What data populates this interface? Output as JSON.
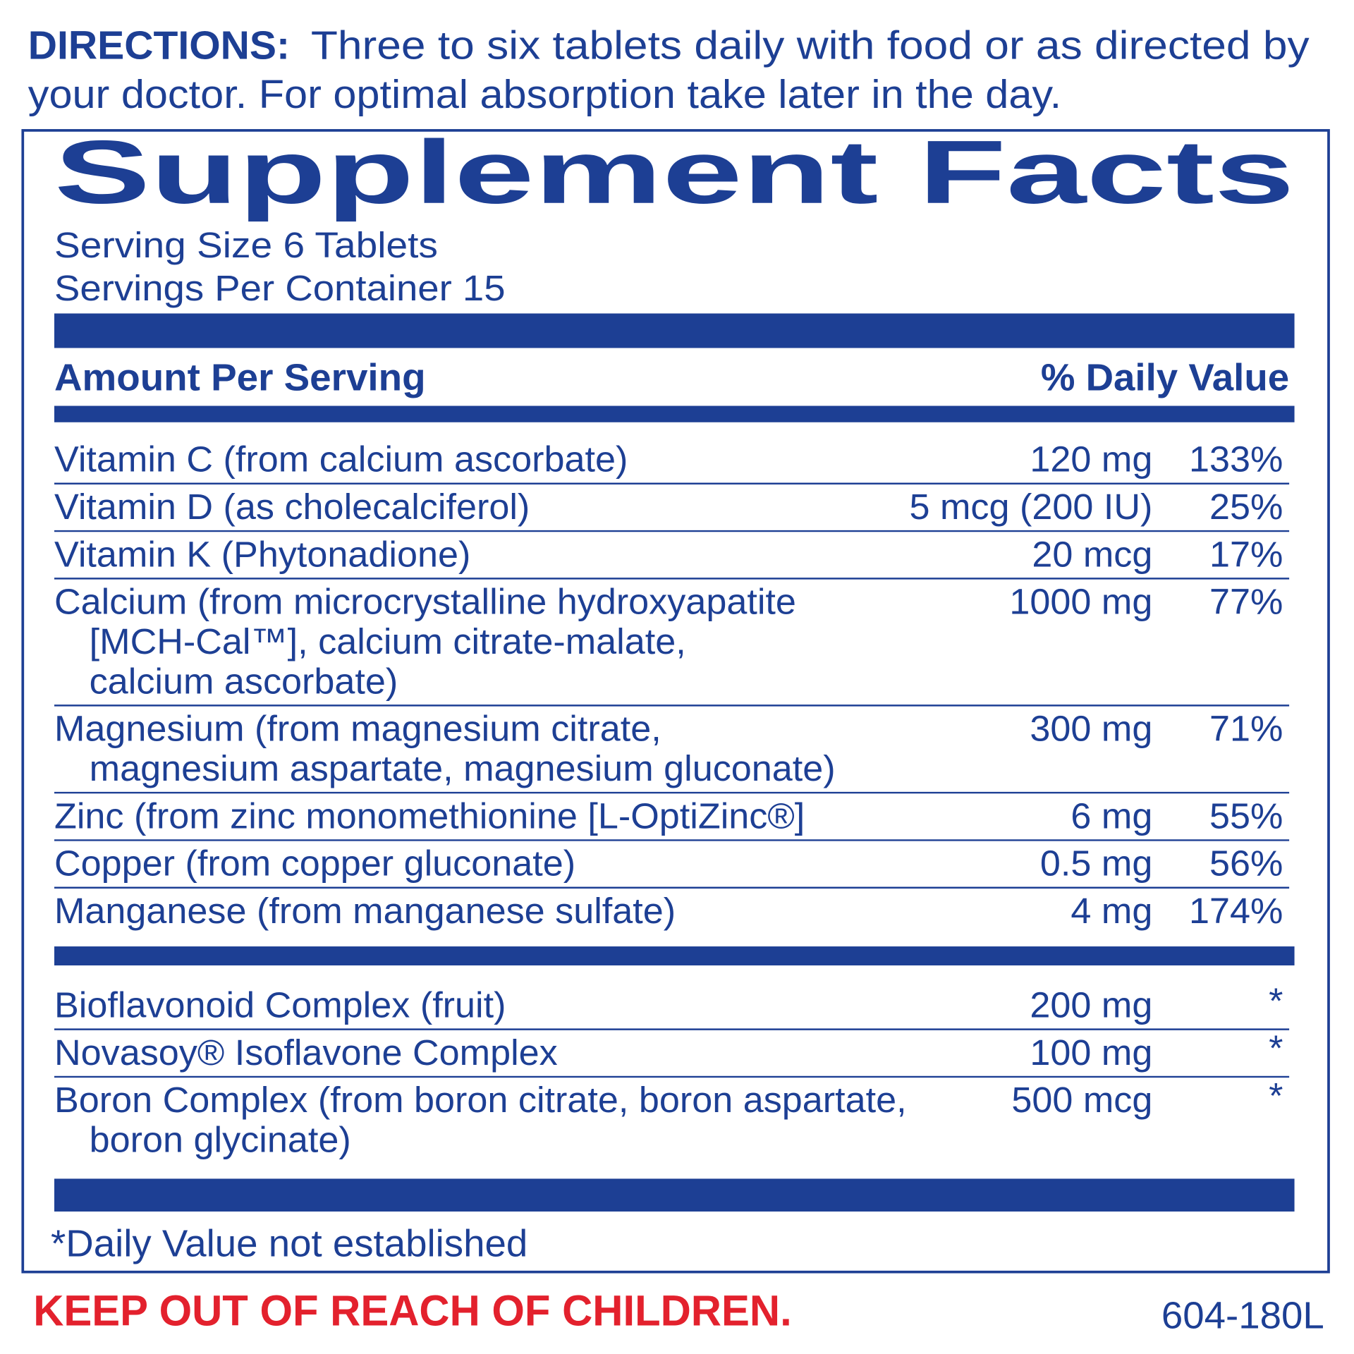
{
  "directions": {
    "label": "DIRECTIONS:",
    "lines": [
      "Three to six tablets daily with food or as directed by",
      "your doctor.  For optimal absorption take later in the day."
    ]
  },
  "facts": {
    "title": "Supplement Facts",
    "serving_size": "Serving Size 6 Tablets",
    "servings_per_container": "Servings Per Container 15",
    "header": {
      "amount": "Amount Per Serving",
      "daily_value": "% Daily Value"
    },
    "groups": [
      {
        "rows": [
          {
            "name": [
              "Vitamin C (from calcium ascorbate)"
            ],
            "amount": "120 mg",
            "dv": "133%"
          },
          {
            "name": [
              "Vitamin D (as cholecalciferol)"
            ],
            "amount": "5 mcg (200 IU)",
            "dv": "25%"
          },
          {
            "name": [
              "Vitamin K (Phytonadione)"
            ],
            "amount": "20 mcg",
            "dv": "17%"
          },
          {
            "name": [
              "Calcium (from microcrystalline hydroxyapatite",
              "[MCH-Cal™], calcium citrate-malate,",
              "calcium ascorbate)"
            ],
            "amount": "1000 mg",
            "dv": "77%"
          },
          {
            "name": [
              "Magnesium (from magnesium citrate,",
              "magnesium aspartate, magnesium gluconate)"
            ],
            "amount": "300 mg",
            "dv": "71%"
          },
          {
            "name": [
              "Zinc (from zinc monomethionine [L-OptiZinc®]"
            ],
            "amount": "6 mg",
            "dv": "55%"
          },
          {
            "name": [
              "Copper (from copper gluconate)"
            ],
            "amount": "0.5 mg",
            "dv": "56%"
          },
          {
            "name": [
              "Manganese (from manganese sulfate)"
            ],
            "amount": "4 mg",
            "dv": "174%"
          }
        ]
      },
      {
        "rows": [
          {
            "name": [
              "Bioflavonoid Complex (fruit)"
            ],
            "amount": "200 mg",
            "dv": "*"
          },
          {
            "name": [
              "Novasoy® Isoflavone Complex"
            ],
            "amount": "100 mg",
            "dv": "*"
          },
          {
            "name": [
              "Boron Complex  (from boron citrate, boron aspartate,",
              "boron glycinate)"
            ],
            "amount": "500 mcg",
            "dv": "*"
          }
        ]
      }
    ],
    "footnote": "*Daily Value not established"
  },
  "warning": "KEEP OUT OF REACH OF CHILDREN.",
  "code": "604-180L"
}
